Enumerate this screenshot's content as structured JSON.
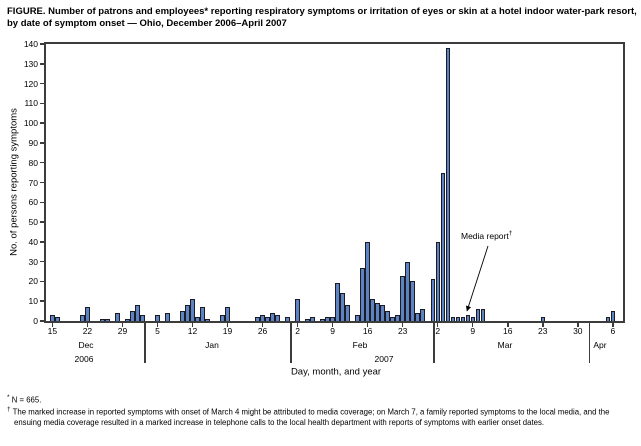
{
  "title": "FIGURE. Number of patrons and employees* reporting respiratory symptoms or irritation of eyes or skin at a hotel indoor water-park resort, by date of symptom onset — Ohio, December 2006–April 2007",
  "chart_data": {
    "type": "bar",
    "ylabel": "No. of persons reporting symptoms",
    "xlabel": "Day, month, and year",
    "ylim": [
      0,
      140
    ],
    "ytick_interval": 10,
    "grid": false,
    "bar_color": "#5e83c3",
    "annotation": {
      "text": "Media report",
      "dagger": "†"
    },
    "months": [
      "Dec",
      "Jan",
      "Feb",
      "Mar",
      "Apr"
    ],
    "years": [
      "2006",
      "2007"
    ],
    "x_ticks": [
      {
        "m": "Dec",
        "d": 15
      },
      {
        "m": "Dec",
        "d": 22
      },
      {
        "m": "Dec",
        "d": 29
      },
      {
        "m": "Jan",
        "d": 5
      },
      {
        "m": "Jan",
        "d": 12
      },
      {
        "m": "Jan",
        "d": 19
      },
      {
        "m": "Jan",
        "d": 26
      },
      {
        "m": "Feb",
        "d": 2
      },
      {
        "m": "Feb",
        "d": 9
      },
      {
        "m": "Feb",
        "d": 16
      },
      {
        "m": "Feb",
        "d": 23
      },
      {
        "m": "Mar",
        "d": 2
      },
      {
        "m": "Mar",
        "d": 9
      },
      {
        "m": "Mar",
        "d": 16
      },
      {
        "m": "Mar",
        "d": 23
      },
      {
        "m": "Mar",
        "d": 30
      },
      {
        "m": "Apr",
        "d": 6
      }
    ],
    "points": [
      {
        "m": "Dec",
        "d": 15,
        "v": 3
      },
      {
        "m": "Dec",
        "d": 16,
        "v": 2
      },
      {
        "m": "Dec",
        "d": 21,
        "v": 3
      },
      {
        "m": "Dec",
        "d": 22,
        "v": 7
      },
      {
        "m": "Dec",
        "d": 25,
        "v": 1
      },
      {
        "m": "Dec",
        "d": 26,
        "v": 1
      },
      {
        "m": "Dec",
        "d": 28,
        "v": 4
      },
      {
        "m": "Dec",
        "d": 30,
        "v": 1
      },
      {
        "m": "Dec",
        "d": 31,
        "v": 5
      },
      {
        "m": "Jan",
        "d": 1,
        "v": 8
      },
      {
        "m": "Jan",
        "d": 2,
        "v": 3
      },
      {
        "m": "Jan",
        "d": 5,
        "v": 3
      },
      {
        "m": "Jan",
        "d": 7,
        "v": 4
      },
      {
        "m": "Jan",
        "d": 10,
        "v": 5
      },
      {
        "m": "Jan",
        "d": 11,
        "v": 8
      },
      {
        "m": "Jan",
        "d": 12,
        "v": 11
      },
      {
        "m": "Jan",
        "d": 13,
        "v": 2
      },
      {
        "m": "Jan",
        "d": 14,
        "v": 7
      },
      {
        "m": "Jan",
        "d": 15,
        "v": 1
      },
      {
        "m": "Jan",
        "d": 18,
        "v": 3
      },
      {
        "m": "Jan",
        "d": 19,
        "v": 7
      },
      {
        "m": "Jan",
        "d": 25,
        "v": 2
      },
      {
        "m": "Jan",
        "d": 26,
        "v": 3
      },
      {
        "m": "Jan",
        "d": 27,
        "v": 2
      },
      {
        "m": "Jan",
        "d": 28,
        "v": 4
      },
      {
        "m": "Jan",
        "d": 29,
        "v": 3
      },
      {
        "m": "Jan",
        "d": 31,
        "v": 2
      },
      {
        "m": "Feb",
        "d": 2,
        "v": 11
      },
      {
        "m": "Feb",
        "d": 4,
        "v": 1
      },
      {
        "m": "Feb",
        "d": 5,
        "v": 2
      },
      {
        "m": "Feb",
        "d": 7,
        "v": 1
      },
      {
        "m": "Feb",
        "d": 8,
        "v": 2
      },
      {
        "m": "Feb",
        "d": 9,
        "v": 2
      },
      {
        "m": "Feb",
        "d": 10,
        "v": 19
      },
      {
        "m": "Feb",
        "d": 11,
        "v": 14
      },
      {
        "m": "Feb",
        "d": 12,
        "v": 8
      },
      {
        "m": "Feb",
        "d": 14,
        "v": 3
      },
      {
        "m": "Feb",
        "d": 15,
        "v": 27
      },
      {
        "m": "Feb",
        "d": 16,
        "v": 40
      },
      {
        "m": "Feb",
        "d": 17,
        "v": 11
      },
      {
        "m": "Feb",
        "d": 18,
        "v": 9
      },
      {
        "m": "Feb",
        "d": 19,
        "v": 8
      },
      {
        "m": "Feb",
        "d": 20,
        "v": 5
      },
      {
        "m": "Feb",
        "d": 21,
        "v": 2
      },
      {
        "m": "Feb",
        "d": 22,
        "v": 3
      },
      {
        "m": "Feb",
        "d": 23,
        "v": 23
      },
      {
        "m": "Feb",
        "d": 24,
        "v": 30
      },
      {
        "m": "Feb",
        "d": 25,
        "v": 20
      },
      {
        "m": "Feb",
        "d": 26,
        "v": 4
      },
      {
        "m": "Feb",
        "d": 27,
        "v": 6
      },
      {
        "m": "Mar",
        "d": 1,
        "v": 21
      },
      {
        "m": "Mar",
        "d": 2,
        "v": 40
      },
      {
        "m": "Mar",
        "d": 3,
        "v": 75
      },
      {
        "m": "Mar",
        "d": 4,
        "v": 138
      },
      {
        "m": "Mar",
        "d": 5,
        "v": 2
      },
      {
        "m": "Mar",
        "d": 6,
        "v": 2
      },
      {
        "m": "Mar",
        "d": 7,
        "v": 2
      },
      {
        "m": "Mar",
        "d": 8,
        "v": 3
      },
      {
        "m": "Mar",
        "d": 9,
        "v": 2
      },
      {
        "m": "Mar",
        "d": 10,
        "v": 6
      },
      {
        "m": "Mar",
        "d": 11,
        "v": 6
      },
      {
        "m": "Mar",
        "d": 23,
        "v": 2
      },
      {
        "m": "Apr",
        "d": 5,
        "v": 2
      },
      {
        "m": "Apr",
        "d": 6,
        "v": 5
      }
    ]
  },
  "footnotes": [
    {
      "marker": "*",
      "text": "N = 665."
    },
    {
      "marker": "†",
      "text": "The marked increase in reported symptoms with onset of March 4 might be attributed to media coverage; on March 7, a family reported symptoms to the local media, and the ensuing media coverage resulted in a marked increase in telephone calls to the local health department with reports of symptoms with earlier onset dates."
    }
  ]
}
